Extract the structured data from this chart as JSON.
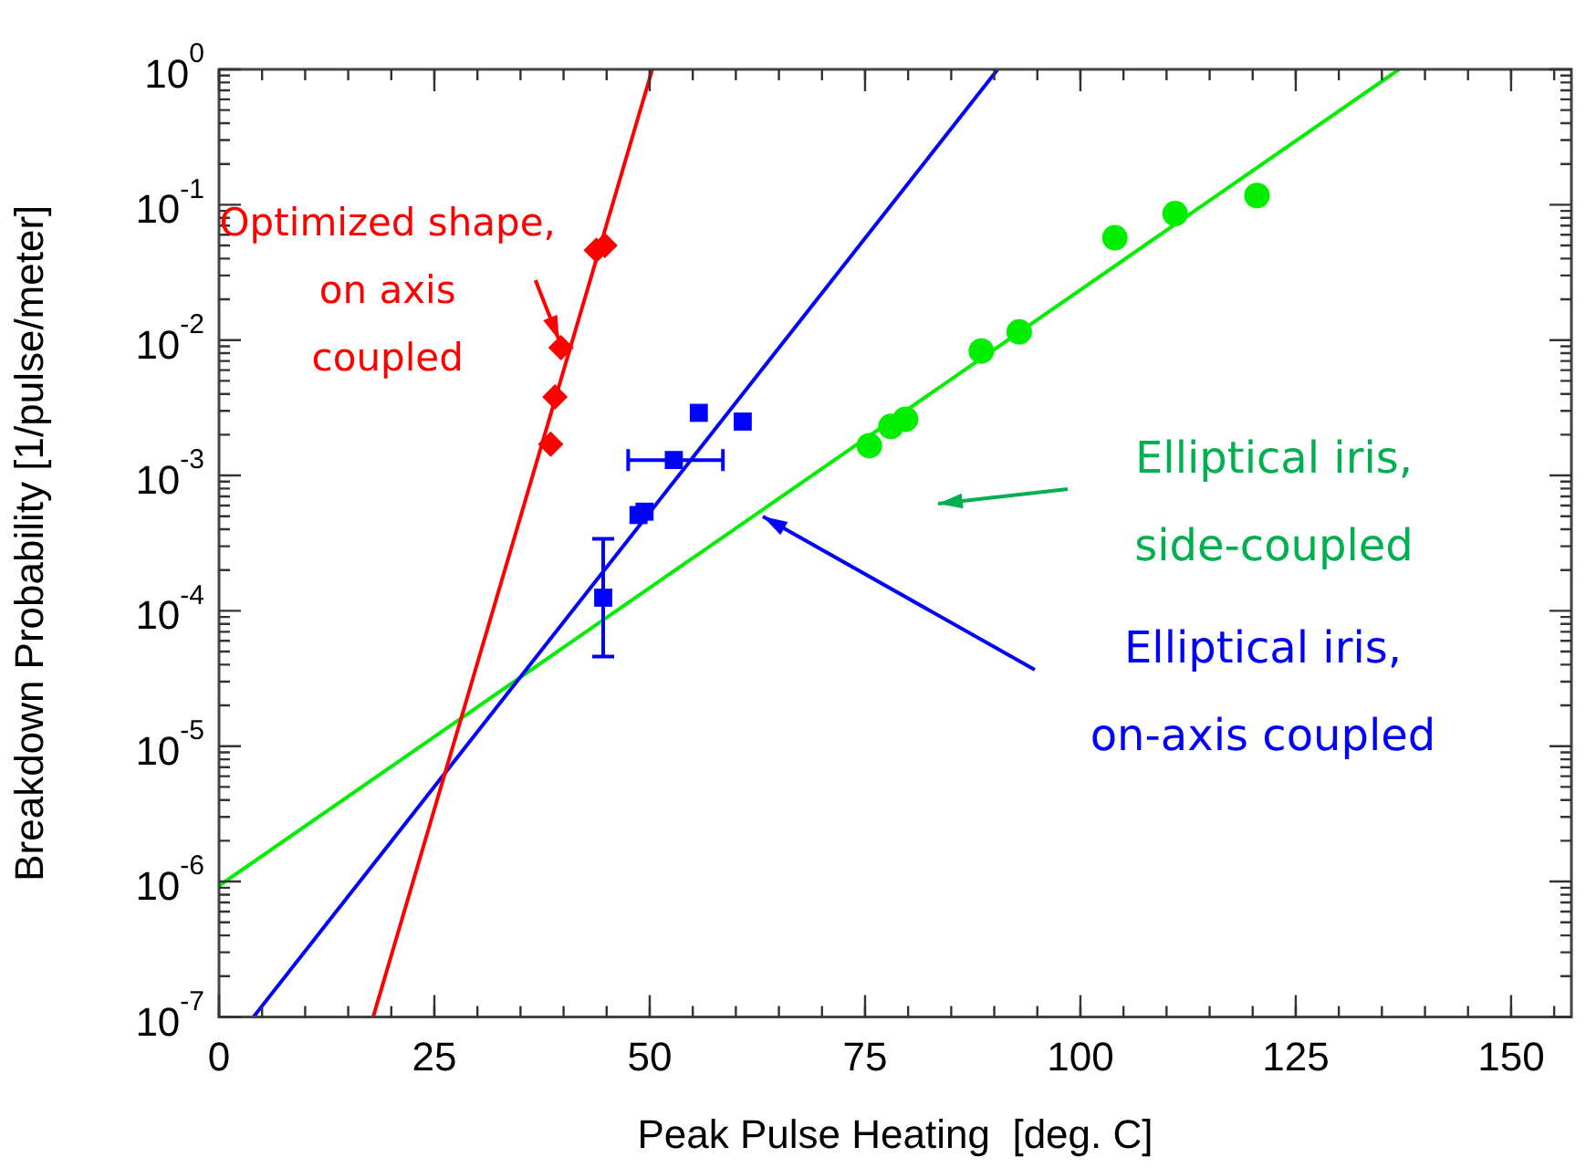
{
  "chart_data": {
    "type": "scatter",
    "xlabel": "Peak Pulse Heating  [deg. C]",
    "ylabel": "Breakdown Probability [1/pulse/meter]",
    "xlim": [
      0,
      157
    ],
    "xticks": [
      0,
      25,
      50,
      75,
      100,
      125,
      150
    ],
    "ylim": [
      1e-07,
      1
    ],
    "log": "y",
    "yticks": [
      {
        "value": 1e-07,
        "label": "10$^{-7}$"
      },
      {
        "value": 1e-06,
        "label": "10$^{-6}$"
      },
      {
        "value": 1e-05,
        "label": "10$^{-5}$"
      },
      {
        "value": 0.0001,
        "label": "10$^{-4}$"
      },
      {
        "value": 0.001,
        "label": "10$^{-3}$"
      },
      {
        "value": 0.01,
        "label": "10$^{-2}$"
      },
      {
        "value": 0.1,
        "label": "10$^{-1}$"
      },
      {
        "value": 1,
        "label": "10$^{0}$"
      }
    ],
    "grid": false,
    "legend": false,
    "series": [
      {
        "type": "scatter",
        "marker": "diamond",
        "color": "#ff0000",
        "x": [
          38.5,
          39.0,
          39.7,
          43.8,
          44.8
        ],
        "values": [
          0.0017,
          0.0038,
          0.0088,
          0.046,
          0.05
        ]
      },
      {
        "type": "scatter",
        "marker": "square",
        "color": "#0000ff",
        "x": [
          44.6,
          48.7,
          49.4,
          52.8,
          55.7,
          60.8
        ],
        "values": [
          0.000125,
          0.00051,
          0.00054,
          0.0013,
          0.0029,
          0.0025
        ],
        "errors": [
          [
            4.6e-05,
            0.00034
          ],
          null,
          null,
          null,
          null,
          null
        ],
        "xerrors": [
          null,
          null,
          null,
          [
            47.5,
            58.5
          ],
          null,
          null
        ]
      },
      {
        "type": "scatter",
        "marker": "circle",
        "color": "#00ee00",
        "x": [
          75.5,
          78.0,
          79.7,
          88.5,
          92.9,
          104.0,
          111.0,
          120.5
        ],
        "values": [
          0.00166,
          0.0023,
          0.0026,
          0.0083,
          0.0115,
          0.057,
          0.086,
          0.117
        ]
      },
      {
        "type": "line",
        "marker": "none",
        "color": "#ff0000",
        "x": [
          17.9,
          50.3
        ],
        "values": [
          1e-07,
          1
        ]
      },
      {
        "type": "line",
        "marker": "none",
        "color": "#0000ff",
        "x": [
          4.0,
          90.4
        ],
        "values": [
          1e-07,
          1
        ]
      },
      {
        "type": "line",
        "marker": "none",
        "color": "#00ee00",
        "x": [
          0,
          137
        ],
        "values": [
          9.3e-07,
          1
        ]
      }
    ],
    "annotations": [
      {
        "text": "Optimized shape,\non axis\ncoupled",
        "x": 39.7,
        "y": 0.0088
      },
      "Elliptical iris,\non-axis coupled",
      "Elliptical iris,\nside-coupled"
    ]
  }
}
